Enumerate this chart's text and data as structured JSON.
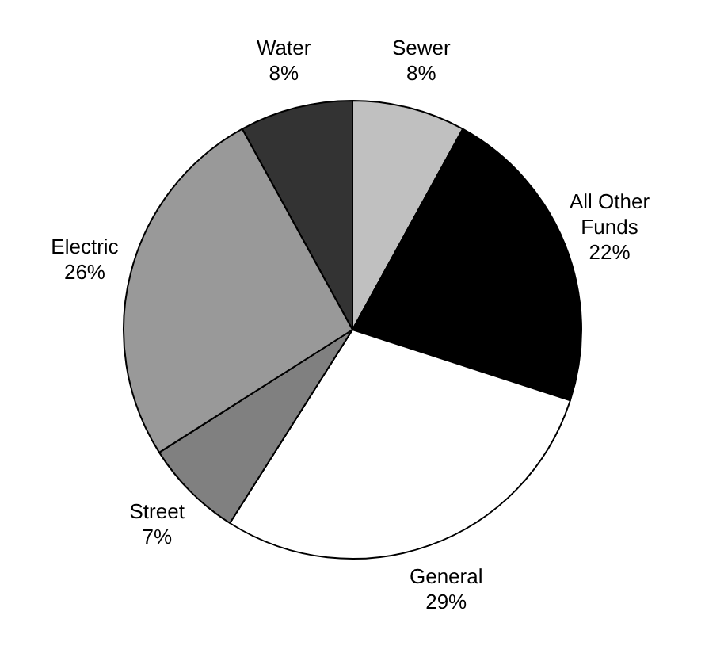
{
  "chart_data": {
    "type": "pie",
    "categories": [
      "Water",
      "Sewer",
      "All Other Funds",
      "General",
      "Street",
      "Electric"
    ],
    "values": [
      8,
      8,
      22,
      29,
      7,
      26
    ],
    "value_labels": [
      "8%",
      "8%",
      "22%",
      "29%",
      "7%",
      "26%"
    ],
    "colors": [
      "#333333",
      "#c0c0c0",
      "#000000",
      "#ffffff",
      "#808080",
      "#999999"
    ],
    "legend": false
  }
}
